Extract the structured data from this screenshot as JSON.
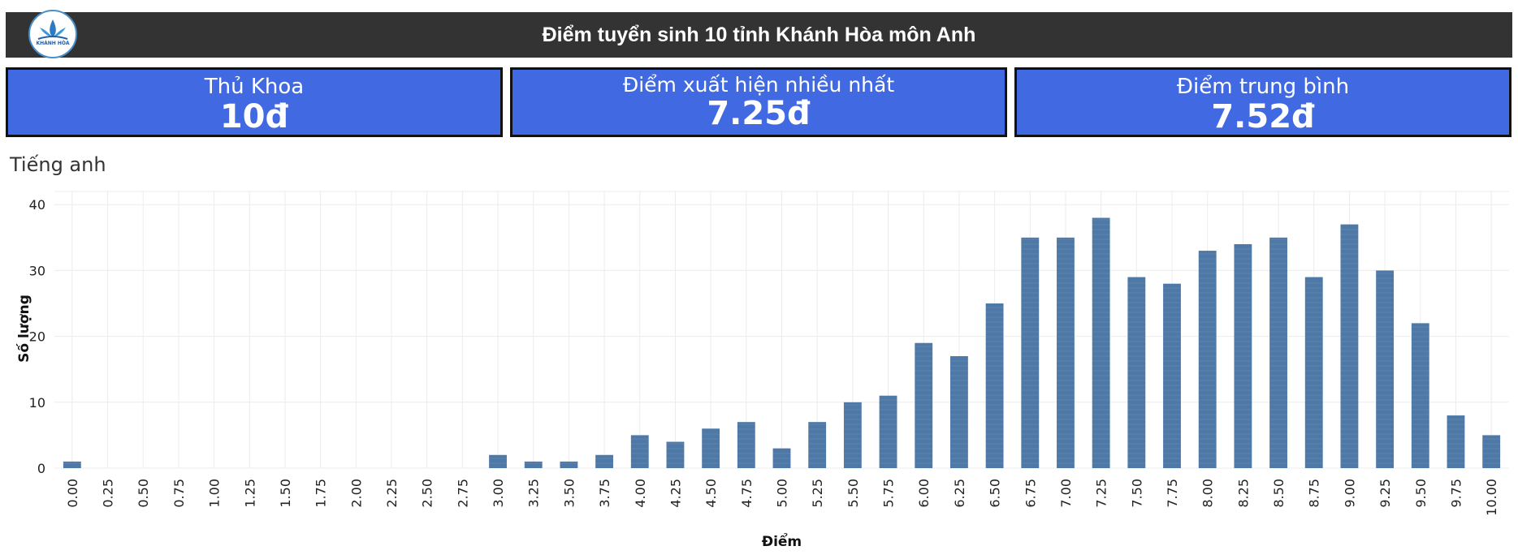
{
  "header": {
    "title": "Điểm tuyển sinh 10 tỉnh Khánh Hòa môn Anh",
    "logo_text": "KHÁNH HÒA"
  },
  "kpis": [
    {
      "label": "Thủ Khoa",
      "value": "10đ"
    },
    {
      "label": "Điểm xuất hiện nhiều nhất",
      "value": "7.25đ"
    },
    {
      "label": "Điểm trung bình",
      "value": "7.52đ"
    }
  ],
  "section_title": "Tiếng anh",
  "colors": {
    "bar": "#4e79a7",
    "kpi_bg": "#4169e1",
    "header_bg": "#333333"
  },
  "chart_data": {
    "type": "bar",
    "xlabel": "Điểm",
    "ylabel": "Số lượng",
    "ylim": [
      0,
      42
    ],
    "yticks": [
      0,
      10,
      20,
      30,
      40
    ],
    "grid": true,
    "categories": [
      "0.00",
      "0.25",
      "0.50",
      "0.75",
      "1.00",
      "1.25",
      "1.50",
      "1.75",
      "2.00",
      "2.25",
      "2.50",
      "2.75",
      "3.00",
      "3.25",
      "3.50",
      "3.75",
      "4.00",
      "4.25",
      "4.50",
      "4.75",
      "5.00",
      "5.25",
      "5.50",
      "5.75",
      "6.00",
      "6.25",
      "6.50",
      "6.75",
      "7.00",
      "7.25",
      "7.50",
      "7.75",
      "8.00",
      "8.25",
      "8.50",
      "8.75",
      "9.00",
      "9.25",
      "9.50",
      "9.75",
      "10.00"
    ],
    "values": [
      1,
      0,
      0,
      0,
      0,
      0,
      0,
      0,
      0,
      0,
      0,
      0,
      2,
      1,
      1,
      2,
      5,
      4,
      6,
      7,
      3,
      7,
      10,
      11,
      19,
      17,
      25,
      35,
      35,
      38,
      29,
      28,
      33,
      34,
      35,
      29,
      37,
      30,
      22,
      8,
      5
    ]
  }
}
